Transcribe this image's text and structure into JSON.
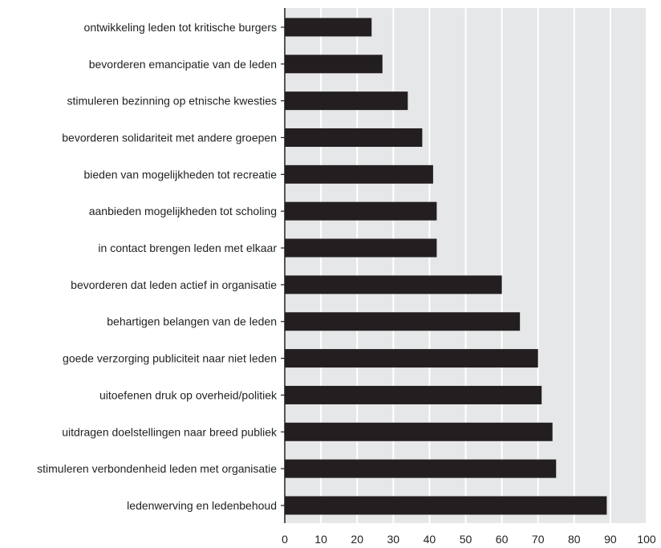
{
  "chart_data": {
    "type": "bar",
    "orientation": "horizontal",
    "categories": [
      "ontwikkeling leden tot kritische burgers",
      "bevorderen emancipatie van de leden",
      "stimuleren bezinning op etnische kwesties",
      "bevorderen solidariteit met andere groepen",
      "bieden van mogelijkheden tot recreatie",
      "aanbieden mogelijkheden tot scholing",
      "in contact brengen leden met elkaar",
      "bevorderen dat leden actief in organisatie",
      "behartigen belangen van de leden",
      "goede verzorging publiciteit naar niet leden",
      "uitoefenen druk op overheid/politiek",
      "uitdragen doelstellingen naar breed publiek",
      "stimuleren verbondenheid leden met organisatie",
      "ledenwerving en ledenbehoud"
    ],
    "values": [
      24,
      27,
      34,
      38,
      41,
      42,
      42,
      60,
      65,
      70,
      71,
      74,
      75,
      89
    ],
    "xlim": [
      0,
      100
    ],
    "xticks": [
      "0",
      "10",
      "20",
      "30",
      "40",
      "50",
      "60",
      "70",
      "80",
      "90",
      "100"
    ],
    "title": "",
    "xlabel": "",
    "ylabel": "",
    "grid": "vertical",
    "legend": "none",
    "colors": {
      "bar": "#231f20",
      "plot_background": "#e6e7e8",
      "gridline": "#ffffff",
      "axis": "#231f20",
      "text": "#222222"
    }
  }
}
